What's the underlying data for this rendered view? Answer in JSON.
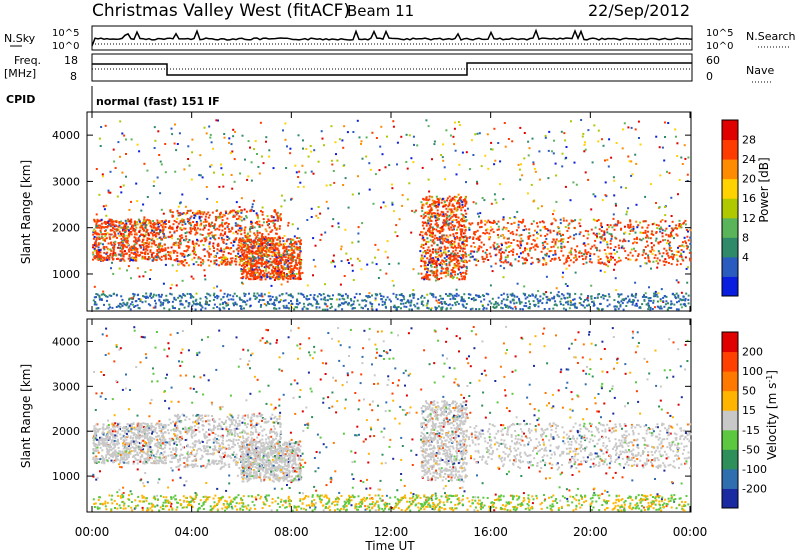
{
  "header": {
    "title": "Christmas Valley West (fitACF)",
    "beam": "Beam 11",
    "date": "22/Sep/2012"
  },
  "status_panels": {
    "nsky_label": "N.Sky",
    "nsky_ticks": [
      "10^5",
      "10^0"
    ],
    "nsearch_label": "N.Search",
    "nsearch_ticks": [
      "10^5",
      "10^0"
    ],
    "freq_label_1": "Freq.",
    "freq_label_2": "[MHz]",
    "freq_ticks": [
      "18",
      "8"
    ],
    "nave_label": "Nave",
    "nave_ticks": [
      "60",
      "0"
    ],
    "cpid_label": "CPID",
    "cpid_value": "normal (fast) 151 IF"
  },
  "chart_data": [
    {
      "type": "heatmap",
      "title": "",
      "xlabel": "",
      "ylabel": "Slant Range [km]",
      "x_ticks": [
        "00:00",
        "04:00",
        "08:00",
        "12:00",
        "16:00",
        "20:00",
        "00:00"
      ],
      "y_ticks": [
        "4000",
        "3000",
        "2000",
        "1000"
      ],
      "ylim": [
        200,
        4500
      ],
      "colorbar_label": "Power [dB]",
      "colorbar_ticks": [
        "28",
        "24",
        "20",
        "16",
        "12",
        "8",
        "4"
      ],
      "colorbar_colors": [
        "#0a1ee0",
        "#2a5bbf",
        "#2f8a6a",
        "#5ab45a",
        "#b0c800",
        "#ffd200",
        "#ff8c00",
        "#ff3c00",
        "#e00000"
      ]
    },
    {
      "type": "heatmap",
      "title": "",
      "xlabel": "Time UT",
      "ylabel": "Slant Range [km]",
      "x_ticks": [
        "00:00",
        "04:00",
        "08:00",
        "12:00",
        "16:00",
        "20:00",
        "00:00"
      ],
      "y_ticks": [
        "4000",
        "3000",
        "2000",
        "1000"
      ],
      "ylim": [
        200,
        4500
      ],
      "colorbar_label": "Velocity [m s^-1]",
      "colorbar_ticks": [
        "200",
        "100",
        "50",
        "15",
        "-15",
        "-50",
        "-100",
        "-200"
      ],
      "colorbar_colors": [
        "#1a2aa0",
        "#2f6fb0",
        "#2e8f5a",
        "#5cc840",
        "#c8c8c8",
        "#ffb400",
        "#ff7800",
        "#ff4000",
        "#e00000"
      ]
    }
  ]
}
